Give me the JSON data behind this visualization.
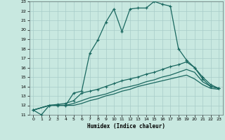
{
  "xlabel": "Humidex (Indice chaleur)",
  "xlim": [
    -0.5,
    23.5
  ],
  "ylim": [
    11,
    23
  ],
  "yticks": [
    11,
    12,
    13,
    14,
    15,
    16,
    17,
    18,
    19,
    20,
    21,
    22,
    23
  ],
  "xticks": [
    0,
    1,
    2,
    3,
    4,
    5,
    6,
    7,
    8,
    9,
    10,
    11,
    12,
    13,
    14,
    15,
    16,
    17,
    18,
    19,
    20,
    21,
    22,
    23
  ],
  "background_color": "#c8e8e0",
  "grid_color": "#a8ccc8",
  "line_color": "#1a6860",
  "line1_x": [
    0,
    1,
    2,
    3,
    4,
    5,
    6,
    7,
    8,
    9,
    10,
    11,
    12,
    13,
    14,
    15,
    16,
    17,
    18,
    19,
    20,
    21,
    22,
    23
  ],
  "line1_y": [
    11.5,
    11.0,
    12.0,
    12.0,
    12.0,
    13.3,
    13.5,
    17.5,
    18.9,
    20.8,
    22.2,
    19.8,
    22.2,
    22.3,
    22.3,
    23.0,
    22.7,
    22.5,
    18.0,
    16.8,
    16.0,
    14.8,
    14.0,
    13.8
  ],
  "line1_markers": [
    0,
    1,
    2,
    3,
    4,
    5,
    6,
    7,
    8,
    9,
    10,
    11,
    12,
    13,
    14,
    15,
    16,
    17,
    18,
    19,
    20,
    21,
    22,
    23
  ],
  "line2_x": [
    0,
    2,
    3,
    4,
    5,
    6,
    7,
    8,
    9,
    10,
    11,
    12,
    13,
    14,
    15,
    16,
    17,
    18,
    19,
    20,
    21,
    22,
    23
  ],
  "line2_y": [
    11.5,
    12.0,
    12.1,
    12.2,
    12.5,
    13.3,
    13.5,
    13.7,
    14.0,
    14.3,
    14.6,
    14.8,
    15.0,
    15.3,
    15.5,
    15.8,
    16.1,
    16.3,
    16.6,
    16.0,
    15.0,
    14.2,
    13.8
  ],
  "line2_markers": [
    0,
    2,
    3,
    4,
    5,
    6,
    7,
    8,
    9,
    10,
    11,
    12,
    13,
    14,
    15,
    16,
    17,
    18,
    19,
    20,
    21,
    22,
    23
  ],
  "line3_x": [
    0,
    2,
    3,
    4,
    5,
    6,
    7,
    8,
    9,
    10,
    11,
    12,
    13,
    14,
    15,
    16,
    17,
    18,
    19,
    20,
    21,
    22,
    23
  ],
  "line3_y": [
    11.5,
    12.0,
    12.0,
    12.0,
    12.2,
    12.5,
    12.8,
    13.0,
    13.2,
    13.5,
    13.8,
    14.0,
    14.2,
    14.5,
    14.7,
    15.0,
    15.2,
    15.5,
    15.8,
    15.5,
    14.5,
    14.0,
    13.8
  ],
  "line4_x": [
    0,
    2,
    3,
    4,
    5,
    6,
    7,
    8,
    9,
    10,
    11,
    12,
    13,
    14,
    15,
    16,
    17,
    18,
    19,
    20,
    21,
    22,
    23
  ],
  "line4_y": [
    11.5,
    12.0,
    12.0,
    12.0,
    12.0,
    12.2,
    12.5,
    12.7,
    13.0,
    13.2,
    13.5,
    13.7,
    14.0,
    14.2,
    14.4,
    14.6,
    14.8,
    15.0,
    15.2,
    14.8,
    14.2,
    13.8,
    13.7
  ]
}
